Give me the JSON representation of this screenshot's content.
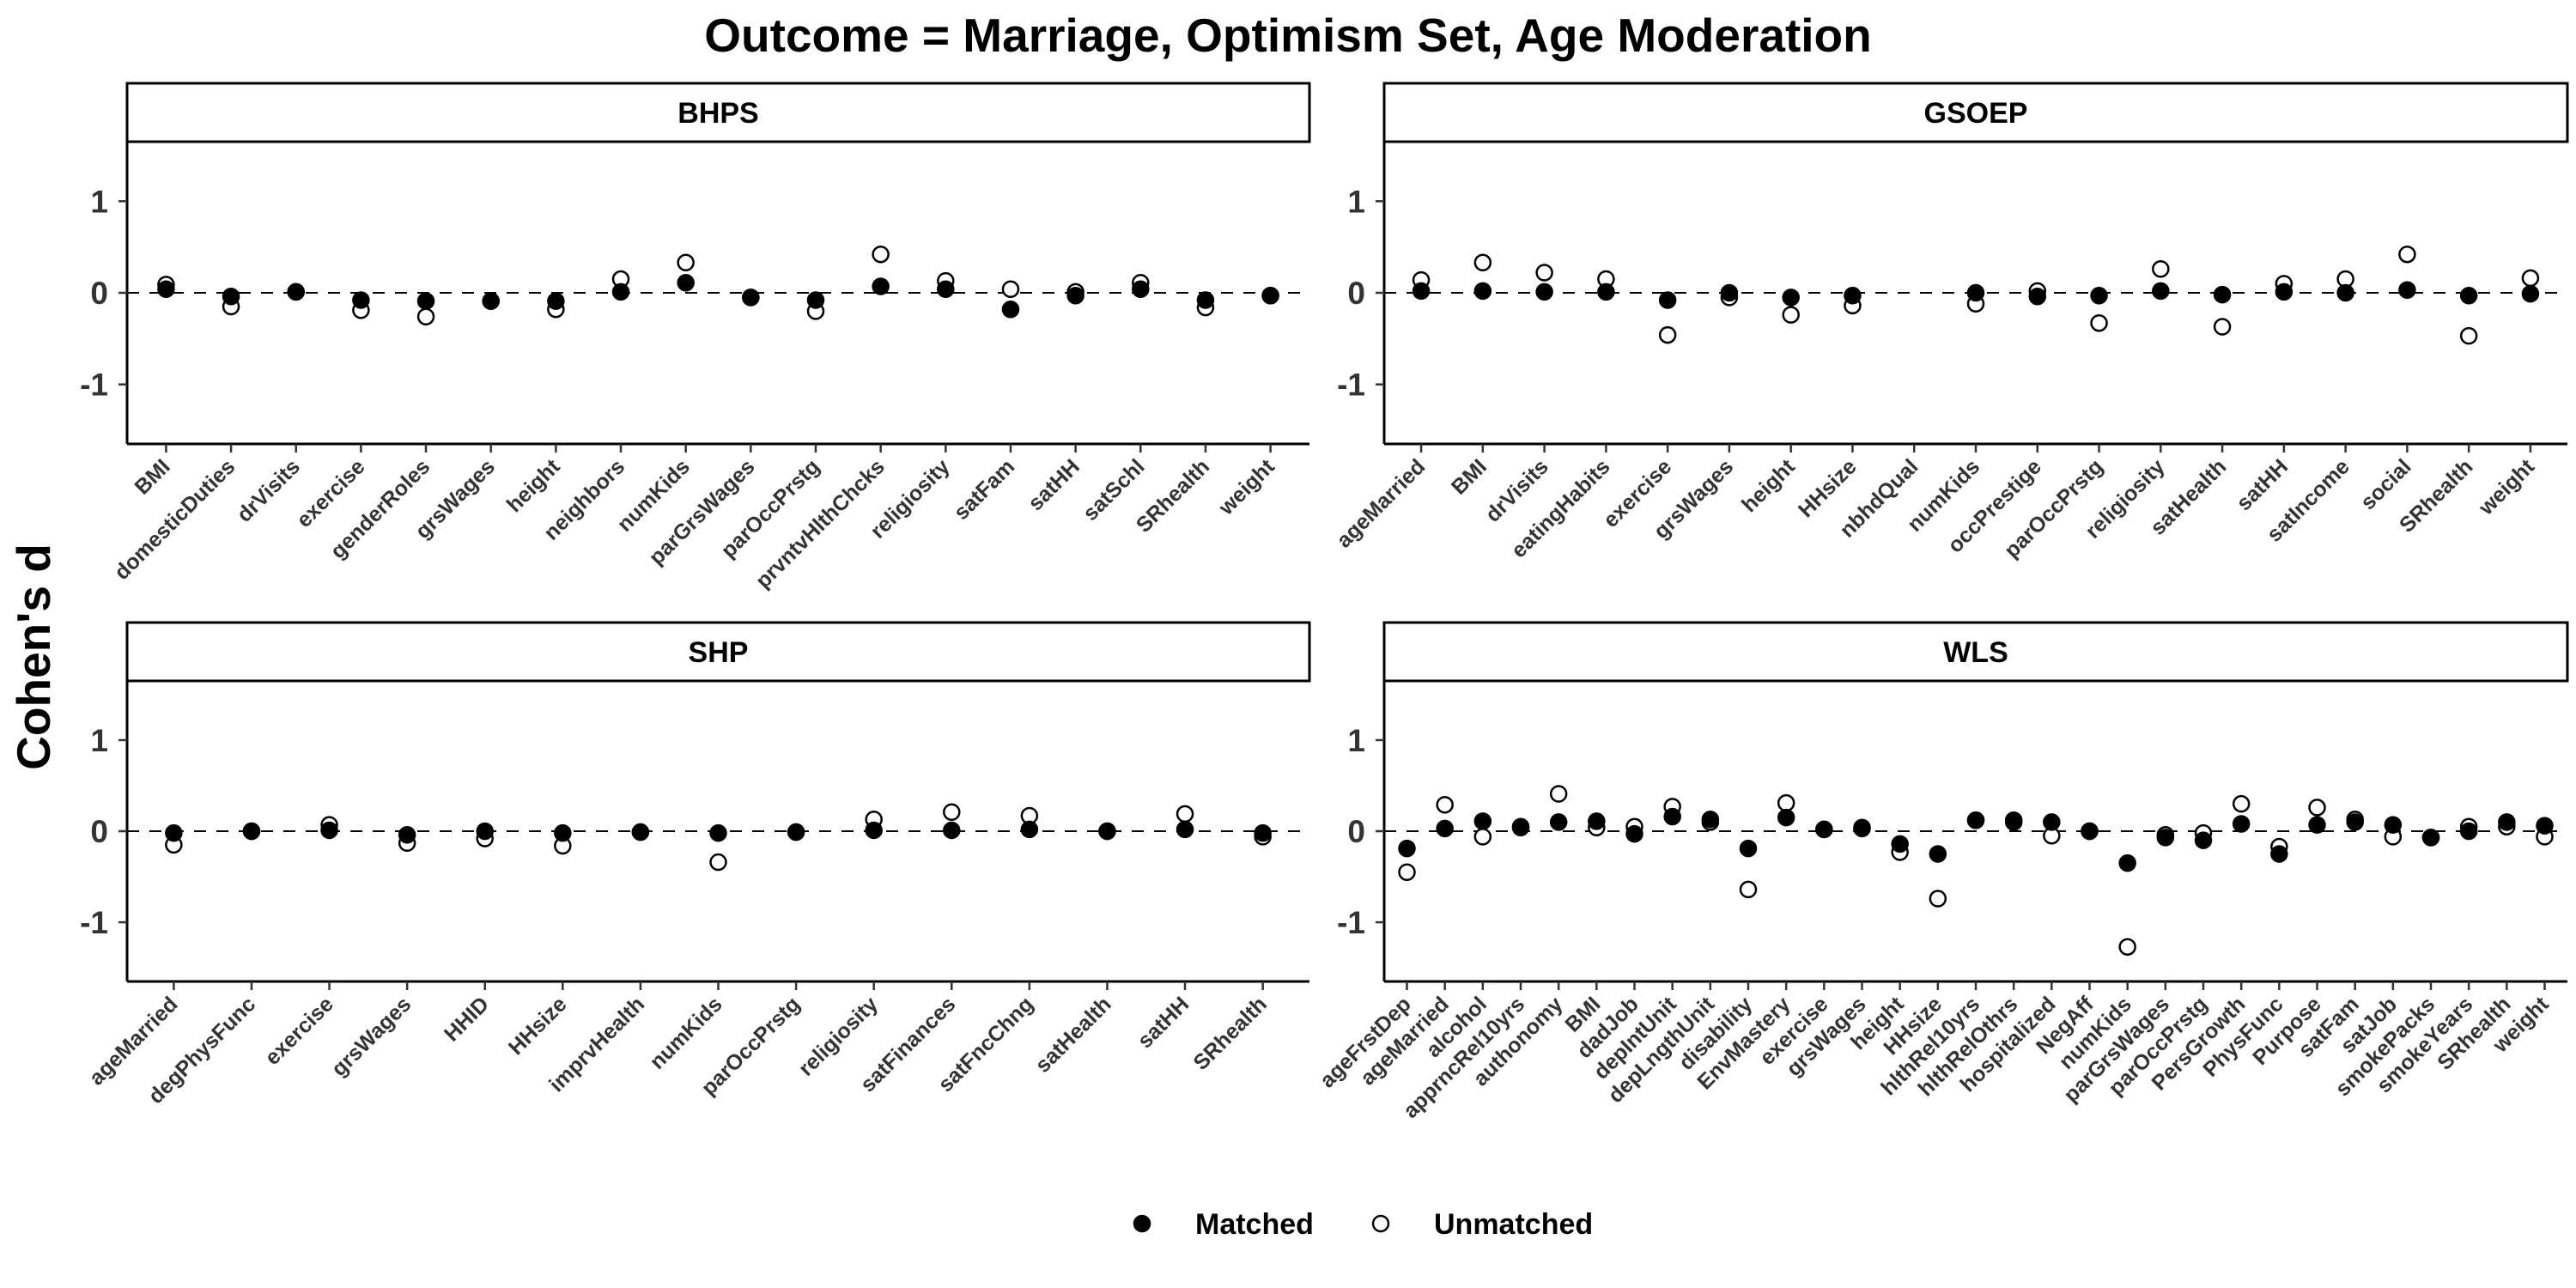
{
  "chart_data": {
    "type": "scatter",
    "title": "Outcome = Marriage, Optimism Set, Age Moderation",
    "ylabel": "Cohen's d",
    "ylim": [
      -1.65,
      1.65
    ],
    "yticks": [
      -1,
      0,
      1
    ],
    "reference_line": 0,
    "legend": {
      "position": "bottom",
      "entries": [
        {
          "name": "Matched",
          "marker": "filled-circle"
        },
        {
          "name": "Unmatched",
          "marker": "open-circle"
        }
      ]
    },
    "panels": [
      {
        "strip": "BHPS",
        "categories": [
          "BMI",
          "domesticDuties",
          "drVisits",
          "exercise",
          "genderRoles",
          "grsWages",
          "height",
          "neighbors",
          "numKids",
          "parGrsWages",
          "parOccPrstg",
          "prvntvHlthChcks",
          "religiosity",
          "satFam",
          "satHH",
          "satSchl",
          "SRhealth",
          "weight"
        ],
        "series": [
          {
            "name": "Matched",
            "values": [
              0.04,
              -0.04,
              0.01,
              -0.08,
              -0.09,
              -0.09,
              -0.09,
              0.01,
              0.11,
              -0.05,
              -0.08,
              0.07,
              0.04,
              -0.18,
              -0.03,
              0.04,
              -0.08,
              -0.03
            ]
          },
          {
            "name": "Unmatched",
            "values": [
              0.09,
              -0.15,
              0.01,
              -0.19,
              -0.26,
              -0.09,
              -0.18,
              0.15,
              0.33,
              -0.05,
              -0.2,
              0.42,
              0.13,
              0.04,
              0.01,
              0.11,
              -0.16,
              -0.03
            ]
          }
        ]
      },
      {
        "strip": "GSOEP",
        "categories": [
          "ageMarried",
          "BMI",
          "drVisits",
          "eatingHabits",
          "exercise",
          "grsWages",
          "height",
          "HHsize",
          "nbhdQual",
          "numKids",
          "occPrestige",
          "parOccPrstg",
          "religiosity",
          "satHealth",
          "satHH",
          "satIncome",
          "social",
          "SRhealth",
          "weight"
        ],
        "series": [
          {
            "name": "Matched",
            "values": [
              0.02,
              0.02,
              0.01,
              0.01,
              -0.08,
              0.0,
              -0.05,
              -0.03,
              null,
              0.0,
              -0.04,
              -0.03,
              0.02,
              -0.02,
              0.01,
              0.0,
              0.03,
              -0.03,
              -0.01
            ]
          },
          {
            "name": "Unmatched",
            "values": [
              0.14,
              0.33,
              0.22,
              0.15,
              -0.46,
              -0.05,
              -0.24,
              -0.14,
              null,
              -0.12,
              0.02,
              -0.33,
              0.26,
              -0.37,
              0.1,
              0.15,
              0.42,
              -0.47,
              0.16
            ]
          }
        ]
      },
      {
        "strip": "SHP",
        "categories": [
          "ageMarried",
          "degPhysFunc",
          "exercise",
          "grsWages",
          "HHID",
          "HHsize",
          "imprvHealth",
          "numKids",
          "parOccPrstg",
          "religiosity",
          "satFinances",
          "satFncChng",
          "satHealth",
          "satHH",
          "SRhealth"
        ],
        "series": [
          {
            "name": "Matched",
            "values": [
              -0.02,
              0.0,
              0.01,
              -0.04,
              0.0,
              -0.02,
              -0.01,
              -0.02,
              -0.01,
              0.01,
              0.01,
              0.02,
              0.0,
              0.02,
              -0.02
            ]
          },
          {
            "name": "Unmatched",
            "values": [
              -0.15,
              0.0,
              0.07,
              -0.13,
              -0.08,
              -0.16,
              -0.01,
              -0.34,
              -0.01,
              0.13,
              0.21,
              0.17,
              0.0,
              0.19,
              -0.06
            ]
          }
        ]
      },
      {
        "strip": "WLS",
        "categories": [
          "ageFrstDep",
          "ageMarried",
          "alcohol",
          "apprncRel10yrs",
          "authonomy",
          "BMI",
          "dadJob",
          "depIntUnit",
          "depLngthUnit",
          "disability",
          "EnvMastery",
          "exercise",
          "grsWages",
          "height",
          "HHsize",
          "hlthRel10yrs",
          "hlthRelOthrs",
          "hospitalized",
          "NegAff",
          "numKids",
          "parGrsWages",
          "parOccPrstg",
          "PersGrowth",
          "PhysFunc",
          "Purpose",
          "satFam",
          "satJob",
          "smokePacks",
          "smokeYears",
          "SRhealth",
          "weight"
        ],
        "series": [
          {
            "name": "Matched",
            "values": [
              -0.19,
              0.03,
              0.11,
              0.05,
              0.1,
              0.11,
              -0.03,
              0.16,
              0.13,
              -0.19,
              0.15,
              0.02,
              0.03,
              -0.14,
              -0.25,
              0.12,
              0.12,
              0.1,
              0.0,
              -0.35,
              -0.07,
              -0.1,
              0.08,
              -0.25,
              0.07,
              0.1,
              0.07,
              -0.07,
              0.0,
              0.1,
              0.06
            ]
          },
          {
            "name": "Unmatched",
            "values": [
              -0.45,
              0.29,
              -0.06,
              0.04,
              0.41,
              0.04,
              0.05,
              0.27,
              0.1,
              -0.64,
              0.31,
              0.02,
              0.04,
              -0.23,
              -0.74,
              0.12,
              0.1,
              -0.05,
              0.0,
              -1.27,
              -0.04,
              -0.02,
              0.3,
              -0.17,
              0.26,
              0.13,
              -0.06,
              -0.07,
              0.05,
              0.05,
              -0.06
            ]
          }
        ]
      }
    ]
  }
}
